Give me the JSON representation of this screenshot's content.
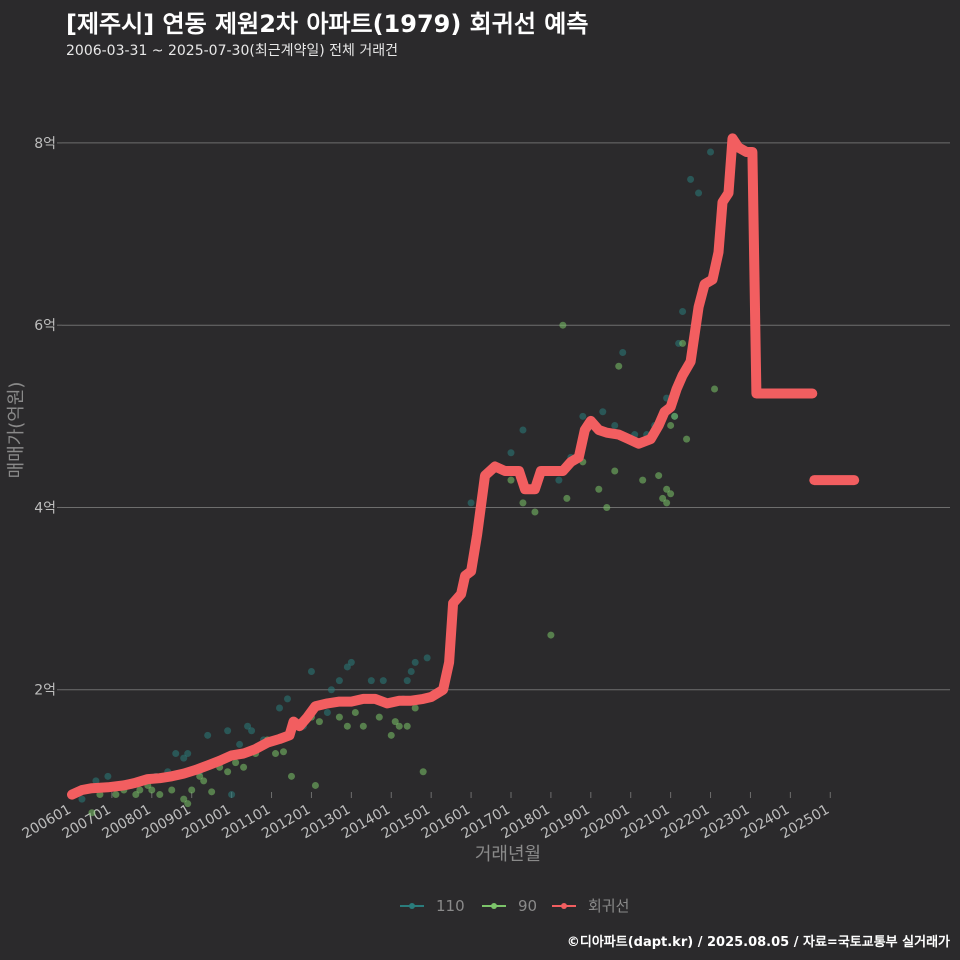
{
  "title": "[제주시] 연동 제원2차 아파트(1979) 회귀선 예측",
  "subtitle": "2006-03-31 ~ 2025-07-30(최근계약일) 전체 거래건",
  "footer": "©디아파트(dapt.kr) / 2025.08.05 / 자료=국토교통부 실거래가",
  "colors": {
    "background": "#2b2a2c",
    "grid": "#6e6e6e",
    "s110": "#2a7c7c",
    "s90": "#7cc46a",
    "regression": "#f25e60"
  },
  "chart_data": {
    "type": "scatter",
    "xlabel": "거래년월",
    "ylabel": "매매가(억원)",
    "xlim": [
      2005.75,
      2028.0
    ],
    "ylim": [
      0.9,
      8.8
    ],
    "yticks": [
      {
        "value": 2,
        "label": "2억"
      },
      {
        "value": 4,
        "label": "4억"
      },
      {
        "value": 6,
        "label": "6억"
      },
      {
        "value": 8,
        "label": "8억"
      }
    ],
    "xticks": [
      {
        "value": 2006,
        "label": "200601"
      },
      {
        "value": 2007,
        "label": "200701"
      },
      {
        "value": 2008,
        "label": "200801"
      },
      {
        "value": 2009,
        "label": "200901"
      },
      {
        "value": 2010,
        "label": "201001"
      },
      {
        "value": 2011,
        "label": "201101"
      },
      {
        "value": 2012,
        "label": "201201"
      },
      {
        "value": 2013,
        "label": "201301"
      },
      {
        "value": 2014,
        "label": "201401"
      },
      {
        "value": 2015,
        "label": "201501"
      },
      {
        "value": 2016,
        "label": "201601"
      },
      {
        "value": 2017,
        "label": "201701"
      },
      {
        "value": 2018,
        "label": "201801"
      },
      {
        "value": 2019,
        "label": "201901"
      },
      {
        "value": 2020,
        "label": "202001"
      },
      {
        "value": 2021,
        "label": "202101"
      },
      {
        "value": 2022,
        "label": "202201"
      },
      {
        "value": 2023,
        "label": "202301"
      },
      {
        "value": 2024,
        "label": "202401"
      },
      {
        "value": 2025,
        "label": "202501"
      }
    ],
    "legend": [
      {
        "name": "110",
        "color": "#2a7c7c"
      },
      {
        "name": "90",
        "color": "#7cc46a"
      },
      {
        "name": "회귀선",
        "color": "#f25e60"
      }
    ],
    "series": [
      {
        "name": "110",
        "points": [
          [
            2006.25,
            0.8
          ],
          [
            2006.6,
            1.0
          ],
          [
            2006.9,
            1.05
          ],
          [
            2007.2,
            0.95
          ],
          [
            2007.5,
            0.95
          ],
          [
            2007.8,
            1.0
          ],
          [
            2008.1,
            1.05
          ],
          [
            2008.4,
            1.1
          ],
          [
            2008.6,
            1.3
          ],
          [
            2008.8,
            1.25
          ],
          [
            2008.9,
            1.3
          ],
          [
            2009.2,
            1.1
          ],
          [
            2009.4,
            1.5
          ],
          [
            2009.6,
            1.2
          ],
          [
            2009.9,
            1.55
          ],
          [
            2010.0,
            0.85
          ],
          [
            2010.2,
            1.4
          ],
          [
            2010.4,
            1.6
          ],
          [
            2010.5,
            1.55
          ],
          [
            2010.8,
            1.45
          ],
          [
            2011.2,
            1.8
          ],
          [
            2011.4,
            1.9
          ],
          [
            2011.8,
            1.6
          ],
          [
            2012.0,
            2.2
          ],
          [
            2012.4,
            1.75
          ],
          [
            2012.5,
            2.0
          ],
          [
            2012.7,
            2.1
          ],
          [
            2012.9,
            2.25
          ],
          [
            2013.0,
            2.3
          ],
          [
            2013.3,
            1.9
          ],
          [
            2013.5,
            2.1
          ],
          [
            2013.8,
            2.1
          ],
          [
            2014.0,
            1.85
          ],
          [
            2014.3,
            1.9
          ],
          [
            2014.4,
            2.1
          ],
          [
            2014.5,
            2.2
          ],
          [
            2014.6,
            2.3
          ],
          [
            2014.9,
            2.35
          ],
          [
            2016.0,
            4.05
          ],
          [
            2016.3,
            4.2
          ],
          [
            2016.8,
            4.4
          ],
          [
            2017.0,
            4.6
          ],
          [
            2017.3,
            4.85
          ],
          [
            2017.9,
            4.4
          ],
          [
            2018.2,
            4.3
          ],
          [
            2018.5,
            4.55
          ],
          [
            2018.8,
            5.0
          ],
          [
            2019.3,
            5.05
          ],
          [
            2019.6,
            4.9
          ],
          [
            2019.8,
            5.7
          ],
          [
            2020.1,
            4.8
          ],
          [
            2020.4,
            4.8
          ],
          [
            2020.6,
            4.9
          ],
          [
            2020.9,
            5.2
          ],
          [
            2021.1,
            5.0
          ],
          [
            2021.2,
            5.8
          ],
          [
            2021.3,
            6.15
          ],
          [
            2021.5,
            7.6
          ],
          [
            2021.7,
            7.45
          ],
          [
            2022.0,
            7.9
          ]
        ]
      },
      {
        "name": "90",
        "points": [
          [
            2006.5,
            0.65
          ],
          [
            2006.7,
            0.85
          ],
          [
            2007.1,
            0.85
          ],
          [
            2007.3,
            0.9
          ],
          [
            2007.6,
            0.85
          ],
          [
            2007.7,
            0.9
          ],
          [
            2007.9,
            0.95
          ],
          [
            2008.0,
            0.9
          ],
          [
            2008.2,
            0.85
          ],
          [
            2008.5,
            0.9
          ],
          [
            2008.8,
            0.8
          ],
          [
            2008.9,
            0.75
          ],
          [
            2009.0,
            0.9
          ],
          [
            2009.2,
            1.05
          ],
          [
            2009.3,
            1.0
          ],
          [
            2009.5,
            0.88
          ],
          [
            2009.7,
            1.15
          ],
          [
            2009.9,
            1.1
          ],
          [
            2010.1,
            1.2
          ],
          [
            2010.3,
            1.15
          ],
          [
            2010.6,
            1.3
          ],
          [
            2010.9,
            1.45
          ],
          [
            2011.1,
            1.3
          ],
          [
            2011.3,
            1.32
          ],
          [
            2011.5,
            1.05
          ],
          [
            2012.0,
            1.7
          ],
          [
            2012.1,
            0.95
          ],
          [
            2012.2,
            1.65
          ],
          [
            2012.7,
            1.7
          ],
          [
            2012.9,
            1.6
          ],
          [
            2013.1,
            1.75
          ],
          [
            2013.3,
            1.6
          ],
          [
            2013.7,
            1.7
          ],
          [
            2014.0,
            1.5
          ],
          [
            2014.1,
            1.65
          ],
          [
            2014.2,
            1.6
          ],
          [
            2014.4,
            1.6
          ],
          [
            2014.6,
            1.8
          ],
          [
            2014.8,
            1.1
          ],
          [
            2017.0,
            4.3
          ],
          [
            2017.3,
            4.05
          ],
          [
            2017.6,
            3.95
          ],
          [
            2018.0,
            2.6
          ],
          [
            2018.4,
            4.1
          ],
          [
            2018.8,
            4.5
          ],
          [
            2019.2,
            4.2
          ],
          [
            2019.4,
            4.0
          ],
          [
            2019.6,
            4.4
          ],
          [
            2019.7,
            5.55
          ],
          [
            2020.3,
            4.3
          ],
          [
            2020.7,
            4.35
          ],
          [
            2020.8,
            4.1
          ],
          [
            2020.9,
            4.2
          ],
          [
            2020.9,
            4.05
          ],
          [
            2021.0,
            4.15
          ],
          [
            2021.0,
            4.9
          ],
          [
            2021.1,
            5.0
          ],
          [
            2021.3,
            5.8
          ],
          [
            2021.4,
            4.75
          ],
          [
            2022.1,
            5.3
          ],
          [
            2018.3,
            6.0
          ]
        ]
      }
    ],
    "regression": [
      [
        [
          2006.0,
          0.85
        ],
        [
          2006.25,
          0.9
        ],
        [
          2006.5,
          0.92
        ],
        [
          2006.9,
          0.93
        ],
        [
          2007.3,
          0.95
        ],
        [
          2007.6,
          0.98
        ],
        [
          2007.9,
          1.02
        ],
        [
          2008.2,
          1.03
        ],
        [
          2008.5,
          1.05
        ],
        [
          2008.8,
          1.08
        ],
        [
          2009.1,
          1.12
        ],
        [
          2009.4,
          1.17
        ],
        [
          2009.7,
          1.22
        ],
        [
          2010.0,
          1.28
        ],
        [
          2010.3,
          1.3
        ],
        [
          2010.6,
          1.35
        ],
        [
          2010.9,
          1.42
        ],
        [
          2011.2,
          1.46
        ],
        [
          2011.45,
          1.5
        ],
        [
          2011.55,
          1.65
        ],
        [
          2011.7,
          1.6
        ],
        [
          2011.9,
          1.7
        ],
        [
          2012.1,
          1.82
        ],
        [
          2012.4,
          1.85
        ],
        [
          2012.7,
          1.87
        ],
        [
          2013.0,
          1.87
        ],
        [
          2013.3,
          1.9
        ],
        [
          2013.6,
          1.9
        ],
        [
          2013.9,
          1.85
        ],
        [
          2014.2,
          1.88
        ],
        [
          2014.5,
          1.88
        ],
        [
          2014.8,
          1.9
        ],
        [
          2015.0,
          1.92
        ],
        [
          2015.3,
          2.0
        ],
        [
          2015.45,
          2.3
        ],
        [
          2015.55,
          2.95
        ],
        [
          2015.75,
          3.05
        ],
        [
          2015.85,
          3.25
        ],
        [
          2016.0,
          3.3
        ],
        [
          2016.15,
          3.7
        ],
        [
          2016.35,
          4.35
        ],
        [
          2016.6,
          4.45
        ],
        [
          2016.85,
          4.4
        ],
        [
          2017.2,
          4.4
        ],
        [
          2017.35,
          4.2
        ],
        [
          2017.6,
          4.2
        ],
        [
          2017.75,
          4.4
        ],
        [
          2018.0,
          4.4
        ],
        [
          2018.3,
          4.4
        ],
        [
          2018.5,
          4.5
        ],
        [
          2018.7,
          4.55
        ],
        [
          2018.85,
          4.85
        ],
        [
          2019.0,
          4.95
        ],
        [
          2019.2,
          4.85
        ],
        [
          2019.4,
          4.82
        ],
        [
          2019.7,
          4.8
        ],
        [
          2019.95,
          4.75
        ],
        [
          2020.2,
          4.7
        ],
        [
          2020.5,
          4.75
        ],
        [
          2020.7,
          4.9
        ],
        [
          2020.85,
          5.05
        ],
        [
          2021.0,
          5.1
        ],
        [
          2021.15,
          5.3
        ],
        [
          2021.3,
          5.45
        ],
        [
          2021.5,
          5.6
        ],
        [
          2021.7,
          6.2
        ],
        [
          2021.85,
          6.45
        ],
        [
          2022.05,
          6.5
        ],
        [
          2022.2,
          6.8
        ],
        [
          2022.3,
          7.35
        ],
        [
          2022.45,
          7.45
        ],
        [
          2022.55,
          8.05
        ],
        [
          2022.7,
          7.95
        ],
        [
          2022.9,
          7.9
        ],
        [
          2023.05,
          7.9
        ],
        [
          2023.15,
          5.25
        ],
        [
          2023.5,
          5.25
        ],
        [
          2024.0,
          5.25
        ],
        [
          2024.55,
          5.25
        ]
      ],
      [
        [
          2024.6,
          4.3
        ],
        [
          2025.6,
          4.3
        ]
      ]
    ]
  }
}
